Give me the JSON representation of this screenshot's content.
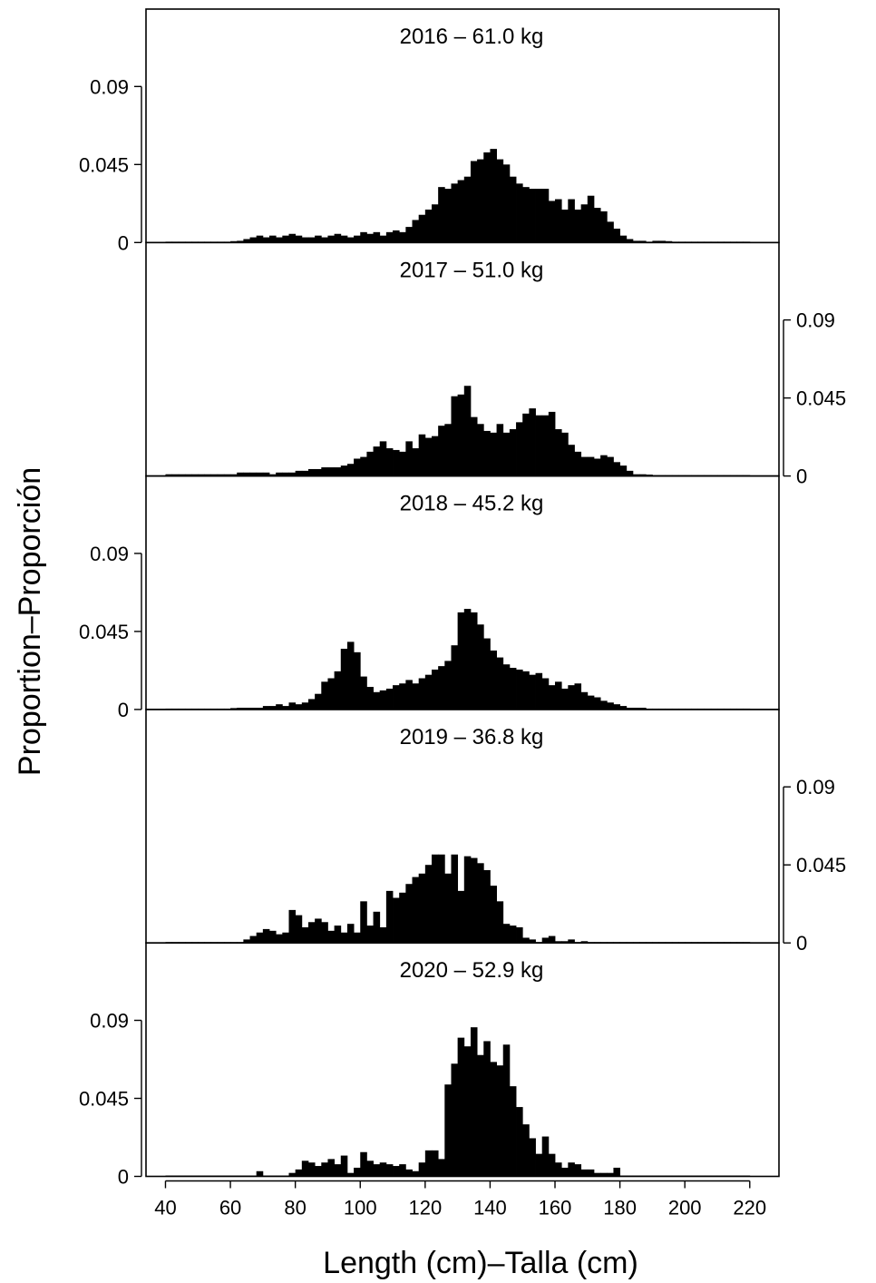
{
  "chart_data": {
    "type": "bar",
    "title": "",
    "xlabel": "Length (cm)–Talla (cm)",
    "ylabel": "Proportion–Proporción",
    "xlim": [
      34,
      229
    ],
    "xticks": [
      "40",
      "60",
      "80",
      "100",
      "120",
      "140",
      "160",
      "180",
      "200",
      "220"
    ],
    "ylim": [
      0,
      0.12
    ],
    "yticks": [
      "0",
      "0.045",
      "0.09"
    ],
    "grid": false,
    "bin_width_cm": 2,
    "panels": [
      {
        "label": "2016",
        "separator": "–",
        "weight": "61.0  kg",
        "y_axis_side": "left",
        "x": [
          40,
          42,
          44,
          46,
          48,
          50,
          52,
          54,
          56,
          58,
          60,
          62,
          64,
          66,
          68,
          70,
          72,
          74,
          76,
          78,
          80,
          82,
          84,
          86,
          88,
          90,
          92,
          94,
          96,
          98,
          100,
          102,
          104,
          106,
          108,
          110,
          112,
          114,
          116,
          118,
          120,
          122,
          124,
          126,
          128,
          130,
          132,
          134,
          136,
          138,
          140,
          142,
          144,
          146,
          148,
          150,
          152,
          154,
          156,
          158,
          160,
          162,
          164,
          166,
          168,
          170,
          172,
          174,
          176,
          178,
          180,
          182,
          184,
          186,
          188,
          190,
          192,
          194,
          196,
          198,
          200,
          202,
          204,
          206,
          208,
          210,
          212,
          214,
          216,
          218
        ],
        "values": [
          0.0005,
          0.0005,
          0.0005,
          0.0005,
          0.0005,
          0.0005,
          0.0005,
          0.0005,
          0.0005,
          0.0005,
          0.0008,
          0.001,
          0.002,
          0.003,
          0.004,
          0.003,
          0.004,
          0.003,
          0.004,
          0.005,
          0.004,
          0.003,
          0.003,
          0.004,
          0.003,
          0.004,
          0.005,
          0.004,
          0.003,
          0.004,
          0.006,
          0.005,
          0.006,
          0.004,
          0.006,
          0.007,
          0.006,
          0.009,
          0.013,
          0.016,
          0.019,
          0.022,
          0.032,
          0.031,
          0.034,
          0.036,
          0.038,
          0.047,
          0.048,
          0.052,
          0.054,
          0.048,
          0.045,
          0.038,
          0.034,
          0.032,
          0.031,
          0.031,
          0.031,
          0.024,
          0.025,
          0.019,
          0.025,
          0.019,
          0.022,
          0.027,
          0.02,
          0.018,
          0.012,
          0.008,
          0.004,
          0.002,
          0.001,
          0.001,
          0.0005,
          0.001,
          0.001,
          0.0008,
          0.0005,
          0.0005,
          0.0005,
          0.0005,
          0.0005,
          0.0005,
          0.0005,
          0.0005,
          0.0005,
          0.0005,
          0.0005,
          0.0005
        ]
      },
      {
        "label": "2017",
        "separator": "–",
        "weight": "51.0 kg",
        "y_axis_side": "right",
        "x": [
          40,
          42,
          44,
          46,
          48,
          50,
          52,
          54,
          56,
          58,
          60,
          62,
          64,
          66,
          68,
          70,
          72,
          74,
          76,
          78,
          80,
          82,
          84,
          86,
          88,
          90,
          92,
          94,
          96,
          98,
          100,
          102,
          104,
          106,
          108,
          110,
          112,
          114,
          116,
          118,
          120,
          122,
          124,
          126,
          128,
          130,
          132,
          134,
          136,
          138,
          140,
          142,
          144,
          146,
          148,
          150,
          152,
          154,
          156,
          158,
          160,
          162,
          164,
          166,
          168,
          170,
          172,
          174,
          176,
          178,
          180,
          182,
          184,
          186,
          188,
          190,
          192,
          194,
          196,
          198,
          200,
          202,
          204,
          206,
          208,
          210,
          212,
          214,
          216,
          218
        ],
        "values": [
          0.001,
          0.001,
          0.001,
          0.001,
          0.001,
          0.001,
          0.001,
          0.001,
          0.001,
          0.001,
          0.001,
          0.002,
          0.002,
          0.002,
          0.002,
          0.002,
          0.001,
          0.002,
          0.002,
          0.002,
          0.003,
          0.003,
          0.004,
          0.004,
          0.005,
          0.005,
          0.005,
          0.006,
          0.007,
          0.01,
          0.011,
          0.014,
          0.017,
          0.02,
          0.016,
          0.015,
          0.014,
          0.02,
          0.016,
          0.024,
          0.022,
          0.023,
          0.029,
          0.03,
          0.046,
          0.047,
          0.052,
          0.034,
          0.03,
          0.026,
          0.025,
          0.03,
          0.025,
          0.027,
          0.031,
          0.036,
          0.039,
          0.035,
          0.035,
          0.037,
          0.027,
          0.025,
          0.018,
          0.014,
          0.011,
          0.011,
          0.01,
          0.012,
          0.011,
          0.008,
          0.006,
          0.003,
          0.001,
          0.001,
          0.0008,
          0.0005,
          0.0005,
          0.0005,
          0.0005,
          0.0005,
          0.0005,
          0.0005,
          0.0005,
          0.0005,
          0.0005,
          0.0005,
          0.0005,
          0.0005,
          0.0005,
          0.0005
        ]
      },
      {
        "label": "2018",
        "separator": "–",
        "weight": "45.2  kg",
        "y_axis_side": "left",
        "x": [
          40,
          42,
          44,
          46,
          48,
          50,
          52,
          54,
          56,
          58,
          60,
          62,
          64,
          66,
          68,
          70,
          72,
          74,
          76,
          78,
          80,
          82,
          84,
          86,
          88,
          90,
          92,
          94,
          96,
          98,
          100,
          102,
          104,
          106,
          108,
          110,
          112,
          114,
          116,
          118,
          120,
          122,
          124,
          126,
          128,
          130,
          132,
          134,
          136,
          138,
          140,
          142,
          144,
          146,
          148,
          150,
          152,
          154,
          156,
          158,
          160,
          162,
          164,
          166,
          168,
          170,
          172,
          174,
          176,
          178,
          180,
          182,
          184,
          186,
          188,
          190,
          192,
          194,
          196,
          198,
          200,
          202,
          204,
          206,
          208,
          210,
          212,
          214,
          216,
          218
        ],
        "values": [
          0.0005,
          0.0005,
          0.0005,
          0.0005,
          0.0005,
          0.0005,
          0.0005,
          0.0005,
          0.0005,
          0.0005,
          0.0008,
          0.001,
          0.001,
          0.001,
          0.001,
          0.002,
          0.002,
          0.003,
          0.002,
          0.004,
          0.003,
          0.004,
          0.006,
          0.009,
          0.016,
          0.018,
          0.022,
          0.035,
          0.039,
          0.033,
          0.019,
          0.013,
          0.01,
          0.011,
          0.012,
          0.014,
          0.015,
          0.017,
          0.015,
          0.018,
          0.02,
          0.023,
          0.025,
          0.028,
          0.037,
          0.056,
          0.058,
          0.056,
          0.049,
          0.041,
          0.034,
          0.03,
          0.026,
          0.024,
          0.023,
          0.022,
          0.02,
          0.021,
          0.018,
          0.014,
          0.016,
          0.012,
          0.014,
          0.015,
          0.01,
          0.008,
          0.007,
          0.005,
          0.004,
          0.003,
          0.002,
          0.001,
          0.001,
          0.001,
          0.0005,
          0.0005,
          0.0005,
          0.0005,
          0.0005,
          0.0005,
          0.0005,
          0.0005,
          0.0005,
          0.0005,
          0.0005,
          0.0005,
          0.0005,
          0.0005,
          0.0005,
          0.0005
        ]
      },
      {
        "label": "2019",
        "separator": "–",
        "weight": "36.8  kg",
        "y_axis_side": "right",
        "x": [
          40,
          42,
          44,
          46,
          48,
          50,
          52,
          54,
          56,
          58,
          60,
          62,
          64,
          66,
          68,
          70,
          72,
          74,
          76,
          78,
          80,
          82,
          84,
          86,
          88,
          90,
          92,
          94,
          96,
          98,
          100,
          102,
          104,
          106,
          108,
          110,
          112,
          114,
          116,
          118,
          120,
          122,
          124,
          126,
          128,
          130,
          132,
          134,
          136,
          138,
          140,
          142,
          144,
          146,
          148,
          150,
          152,
          154,
          156,
          158,
          160,
          162,
          164,
          166,
          168,
          170,
          172,
          174,
          176,
          178,
          180,
          182,
          184,
          186,
          188,
          190,
          192,
          194,
          196,
          198,
          200,
          202,
          204,
          206,
          208,
          210,
          212,
          214,
          216,
          218
        ],
        "values": [
          0.0005,
          0.0005,
          0.0005,
          0.0005,
          0.0005,
          0.0005,
          0.0005,
          0.0005,
          0.0005,
          0.0005,
          0.0005,
          0.0005,
          0.002,
          0.004,
          0.006,
          0.008,
          0.007,
          0.005,
          0.006,
          0.019,
          0.016,
          0.009,
          0.012,
          0.014,
          0.012,
          0.007,
          0.01,
          0.006,
          0.011,
          0.006,
          0.024,
          0.01,
          0.018,
          0.009,
          0.03,
          0.026,
          0.029,
          0.034,
          0.038,
          0.04,
          0.045,
          0.051,
          0.051,
          0.04,
          0.051,
          0.03,
          0.05,
          0.049,
          0.046,
          0.042,
          0.033,
          0.024,
          0.011,
          0.01,
          0.009,
          0.003,
          0.002,
          0.0005,
          0.003,
          0.004,
          0.001,
          0.001,
          0.002,
          0.0005,
          0.001,
          0.0005,
          0.0005,
          0.0005,
          0.0005,
          0.0005,
          0.0005,
          0.0005,
          0.0005,
          0.0005,
          0.0005,
          0.0005,
          0.0005,
          0.0005,
          0.0005,
          0.0005,
          0.0005,
          0.0005,
          0.0005,
          0.0005,
          0.0005,
          0.0005,
          0.0005,
          0.0005,
          0.0005,
          0.0005
        ]
      },
      {
        "label": "2020",
        "separator": "–",
        "weight": "52.9  kg",
        "y_axis_side": "left",
        "x": [
          40,
          42,
          44,
          46,
          48,
          50,
          52,
          54,
          56,
          58,
          60,
          62,
          64,
          66,
          68,
          70,
          72,
          74,
          76,
          78,
          80,
          82,
          84,
          86,
          88,
          90,
          92,
          94,
          96,
          98,
          100,
          102,
          104,
          106,
          108,
          110,
          112,
          114,
          116,
          118,
          120,
          122,
          124,
          126,
          128,
          130,
          132,
          134,
          136,
          138,
          140,
          142,
          144,
          146,
          148,
          150,
          152,
          154,
          156,
          158,
          160,
          162,
          164,
          166,
          168,
          170,
          172,
          174,
          176,
          178,
          180,
          182,
          184,
          186,
          188,
          190,
          192,
          194,
          196,
          198,
          200,
          202,
          204,
          206,
          208,
          210,
          212,
          214,
          216,
          218
        ],
        "values": [
          0.0005,
          0.0005,
          0.0005,
          0.0005,
          0.0005,
          0.0005,
          0.0005,
          0.0005,
          0.0005,
          0.0005,
          0.0005,
          0.0005,
          0.0005,
          0.0005,
          0.003,
          0.0005,
          0.0005,
          0.0005,
          0.0005,
          0.002,
          0.004,
          0.009,
          0.008,
          0.006,
          0.008,
          0.01,
          0.007,
          0.012,
          0.002,
          0.005,
          0.014,
          0.009,
          0.007,
          0.008,
          0.007,
          0.006,
          0.007,
          0.004,
          0.003,
          0.008,
          0.015,
          0.015,
          0.01,
          0.053,
          0.065,
          0.08,
          0.075,
          0.086,
          0.07,
          0.078,
          0.066,
          0.064,
          0.076,
          0.052,
          0.04,
          0.03,
          0.022,
          0.013,
          0.023,
          0.013,
          0.008,
          0.005,
          0.008,
          0.007,
          0.004,
          0.004,
          0.002,
          0.002,
          0.002,
          0.005,
          0.0005,
          0.0005,
          0.0005,
          0.0005,
          0.0005,
          0.0005,
          0.0005,
          0.0005,
          0.0005,
          0.0005,
          0.0005,
          0.0005,
          0.0005,
          0.0005,
          0.0005,
          0.0005,
          0.0005,
          0.0005,
          0.0005,
          0.0005
        ]
      }
    ]
  }
}
